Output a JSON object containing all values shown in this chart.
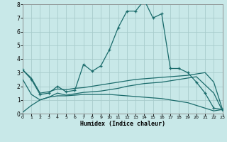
{
  "xlabel": "Humidex (Indice chaleur)",
  "xlim": [
    0,
    23
  ],
  "ylim": [
    0,
    8
  ],
  "xticks": [
    0,
    1,
    2,
    3,
    4,
    5,
    6,
    7,
    8,
    9,
    10,
    11,
    12,
    13,
    14,
    15,
    16,
    17,
    18,
    19,
    20,
    21,
    22,
    23
  ],
  "yticks": [
    0,
    1,
    2,
    3,
    4,
    5,
    6,
    7,
    8
  ],
  "bg_color": "#c8e8e8",
  "line_color": "#1a6b6b",
  "grid_color": "#a8cccc",
  "line1_x": [
    0,
    1,
    2,
    3,
    4,
    5,
    6,
    7,
    8,
    9,
    10,
    11,
    12,
    13,
    14,
    15,
    16,
    17,
    18,
    19,
    20,
    21,
    22,
    23
  ],
  "line1_y": [
    3.2,
    2.5,
    1.4,
    1.5,
    2.0,
    1.6,
    1.7,
    3.6,
    3.1,
    3.5,
    4.7,
    6.3,
    7.5,
    7.5,
    8.3,
    7.0,
    7.3,
    3.3,
    3.3,
    3.0,
    2.3,
    1.5,
    0.4,
    0.3
  ],
  "line2_x": [
    0,
    1,
    2,
    3,
    4,
    5,
    6,
    7,
    8,
    9,
    10,
    11,
    12,
    13,
    14,
    15,
    16,
    17,
    18,
    19,
    20,
    21,
    22,
    23
  ],
  "line2_y": [
    3.2,
    2.6,
    1.5,
    1.6,
    1.8,
    1.75,
    1.85,
    1.9,
    2.0,
    2.1,
    2.2,
    2.3,
    2.4,
    2.5,
    2.55,
    2.6,
    2.65,
    2.7,
    2.75,
    2.8,
    2.9,
    3.0,
    2.3,
    0.3
  ],
  "line3_x": [
    0,
    1,
    2,
    3,
    4,
    5,
    6,
    7,
    8,
    9,
    10,
    11,
    12,
    13,
    14,
    15,
    16,
    17,
    18,
    19,
    20,
    21,
    22,
    23
  ],
  "line3_y": [
    2.5,
    1.4,
    1.0,
    1.2,
    1.5,
    1.35,
    1.45,
    1.55,
    1.6,
    1.65,
    1.75,
    1.85,
    2.0,
    2.1,
    2.2,
    2.25,
    2.3,
    2.4,
    2.5,
    2.6,
    2.7,
    2.1,
    1.5,
    0.2
  ],
  "line4_x": [
    0,
    1,
    2,
    3,
    4,
    5,
    6,
    7,
    8,
    9,
    10,
    11,
    12,
    13,
    14,
    15,
    16,
    17,
    18,
    19,
    20,
    21,
    22,
    23
  ],
  "line4_y": [
    0.1,
    0.6,
    1.0,
    1.2,
    1.3,
    1.3,
    1.35,
    1.4,
    1.4,
    1.4,
    1.4,
    1.35,
    1.3,
    1.25,
    1.2,
    1.15,
    1.1,
    1.0,
    0.9,
    0.8,
    0.6,
    0.4,
    0.2,
    0.3
  ]
}
